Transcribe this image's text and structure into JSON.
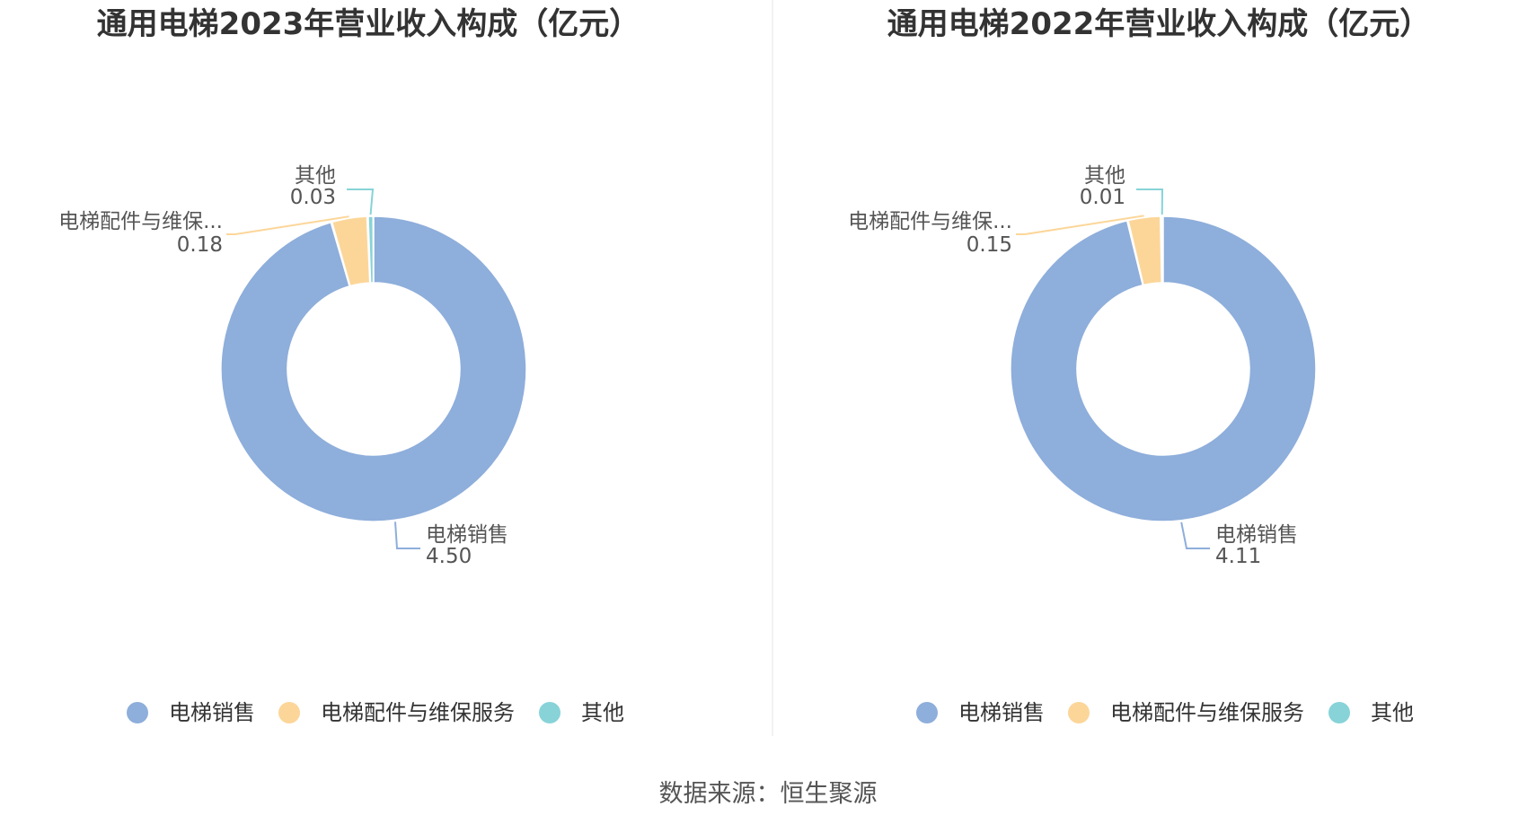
{
  "chart_data": [
    {
      "type": "pie",
      "donut": true,
      "title": "通用电梯2023年营业收入构成（亿元）",
      "categories": [
        "电梯销售",
        "电梯配件与维保服务",
        "其他"
      ],
      "values": [
        4.5,
        0.18,
        0.03
      ],
      "display_values": [
        "4.50",
        "0.18",
        "0.03"
      ],
      "slice_labels": [
        "电梯销售",
        "电梯配件与维保...",
        "其他"
      ],
      "legend": [
        "电梯销售",
        "电梯配件与维保服务",
        "其他"
      ],
      "legend_position": "bottom"
    },
    {
      "type": "pie",
      "donut": true,
      "title": "通用电梯2022年营业收入构成（亿元）",
      "categories": [
        "电梯销售",
        "电梯配件与维保服务",
        "其他"
      ],
      "values": [
        4.11,
        0.15,
        0.01
      ],
      "display_values": [
        "4.11",
        "0.15",
        "0.01"
      ],
      "slice_labels": [
        "电梯销售",
        "电梯配件与维保...",
        "其他"
      ],
      "legend": [
        "电梯销售",
        "电梯配件与维保服务",
        "其他"
      ],
      "legend_position": "bottom"
    }
  ],
  "colors": [
    "#8eaedb",
    "#fcd699",
    "#87d3d8"
  ],
  "source_text": "数据来源：恒生聚源"
}
